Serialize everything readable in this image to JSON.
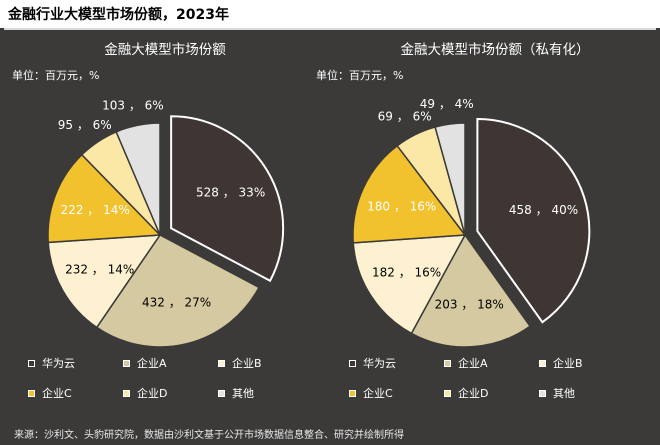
{
  "header": {
    "title": "金融行业大模型市场份额，2023年"
  },
  "charts": [
    {
      "title": "金融大模型市场份额",
      "unit": "单位：百万元，%",
      "labels": [
        "528 ， 33%",
        "432 ， 27%",
        "232 ， 14%",
        "222 ， 14%",
        "95 ， 6%",
        "103 ， 6%"
      ]
    },
    {
      "title": "金融大模型市场份额（私有化）",
      "unit": "单位：百万元，%",
      "labels": [
        "458 ， 40%",
        "203 ， 18%",
        "182 ， 16%",
        "180 ， 16%",
        "69 ， 6%",
        "49 ， 4%"
      ]
    }
  ],
  "legend": [
    {
      "name": "华为云",
      "color": "#3f3533"
    },
    {
      "name": "企业A",
      "color": "#d4c9a0"
    },
    {
      "name": "企业B",
      "color": "#fdf1d2"
    },
    {
      "name": "企业C",
      "color": "#f2c12e"
    },
    {
      "name": "企业D",
      "color": "#fbe8a6"
    },
    {
      "name": "其他",
      "color": "#e2e2e2"
    }
  ],
  "source": "来源：沙利文、头豹研究院，数据由沙利文基于公开市场数据信息整合、研究并绘制所得",
  "chart_data": [
    {
      "type": "pie",
      "title": "金融大模型市场份额",
      "unit": "单位：百万元，%",
      "categories": [
        "华为云",
        "企业A",
        "企业B",
        "企业C",
        "企业D",
        "其他"
      ],
      "values": [
        528,
        432,
        232,
        222,
        95,
        103
      ],
      "percentages": [
        33,
        27,
        14,
        14,
        6,
        6
      ],
      "colors": [
        "#3f3533",
        "#d4c9a0",
        "#fdf1d2",
        "#f2c12e",
        "#fbe8a6",
        "#e2e2e2"
      ],
      "exploded": "华为云",
      "legend": "bottom"
    },
    {
      "type": "pie",
      "title": "金融大模型市场份额（私有化）",
      "unit": "单位：百万元，%",
      "categories": [
        "华为云",
        "企业A",
        "企业B",
        "企业C",
        "企业D",
        "其他"
      ],
      "values": [
        458,
        203,
        182,
        180,
        69,
        49
      ],
      "percentages": [
        40,
        18,
        16,
        16,
        6,
        4
      ],
      "colors": [
        "#3f3533",
        "#d4c9a0",
        "#fdf1d2",
        "#f2c12e",
        "#fbe8a6",
        "#e2e2e2"
      ],
      "exploded": "华为云",
      "legend": "bottom"
    }
  ]
}
